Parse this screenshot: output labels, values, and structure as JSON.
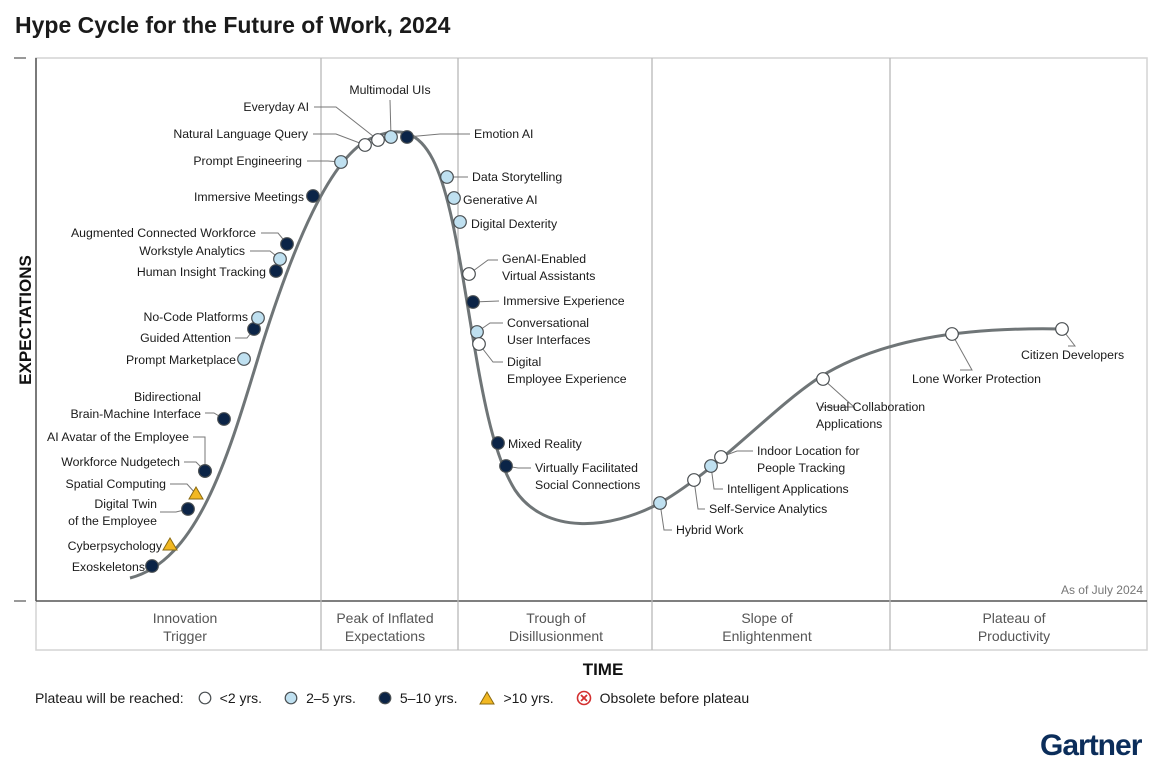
{
  "title": "Hype Cycle for the Future of Work, 2024",
  "as_of": "As of July 2024",
  "brand": "Gartner",
  "colors": {
    "lt2": "#ffffff",
    "y2to5": "#bfe0f0",
    "y5to10": "#0b2447",
    "gt10": "#f2b822",
    "obsolete": "#d32f2f",
    "curve": "#6f7577",
    "marker_stroke": "#4a4f52"
  },
  "legend": {
    "lead": "Plateau will be reached:",
    "items": [
      {
        "key": "lt2",
        "shape": "circle",
        "label": "<2 yrs."
      },
      {
        "key": "y2to5",
        "shape": "circle",
        "label": "2–5 yrs."
      },
      {
        "key": "y5to10",
        "shape": "circle",
        "label": "5–10 yrs."
      },
      {
        "key": "gt10",
        "shape": "triangle",
        "label": ">10 yrs."
      },
      {
        "key": "obsolete",
        "shape": "cross",
        "label": "Obsolete before plateau"
      }
    ]
  },
  "chart_data": {
    "type": "scatter",
    "title": "Hype Cycle for the Future of Work, 2024",
    "xlabel": "TIME",
    "ylabel": "EXPECTATIONS",
    "phases": [
      [
        "Innovation",
        "Trigger"
      ],
      [
        "Peak of Inflated",
        "Expectations"
      ],
      [
        "Trough of",
        "Disillusionment"
      ],
      [
        "Slope of",
        "Enlightenment"
      ],
      [
        "Plateau of",
        "Productivity"
      ]
    ],
    "technologies": [
      {
        "name": [
          "Exoskeletons"
        ],
        "phase": "Innovation Trigger",
        "category": "y5to10"
      },
      {
        "name": [
          "Cyberpsychology"
        ],
        "phase": "Innovation Trigger",
        "category": "gt10"
      },
      {
        "name": [
          "Digital Twin",
          "of the Employee"
        ],
        "phase": "Innovation Trigger",
        "category": "y5to10"
      },
      {
        "name": [
          "Spatial Computing"
        ],
        "phase": "Innovation Trigger",
        "category": "gt10"
      },
      {
        "name": [
          "Workforce Nudgetech"
        ],
        "phase": "Innovation Trigger",
        "category": "y5to10"
      },
      {
        "name": [
          "AI Avatar of the Employee"
        ],
        "phase": "Innovation Trigger",
        "category": "y5to10"
      },
      {
        "name": [
          "Bidirectional",
          "Brain-Machine Interface"
        ],
        "phase": "Innovation Trigger",
        "category": "y5to10"
      },
      {
        "name": [
          "Prompt Marketplace"
        ],
        "phase": "Innovation Trigger",
        "category": "y2to5"
      },
      {
        "name": [
          "Guided Attention"
        ],
        "phase": "Innovation Trigger",
        "category": "y5to10"
      },
      {
        "name": [
          "No-Code Platforms"
        ],
        "phase": "Innovation Trigger",
        "category": "y2to5"
      },
      {
        "name": [
          "Human Insight Tracking"
        ],
        "phase": "Innovation Trigger",
        "category": "y5to10"
      },
      {
        "name": [
          "Workstyle Analytics"
        ],
        "phase": "Innovation Trigger",
        "category": "y2to5"
      },
      {
        "name": [
          "Augmented Connected Workforce"
        ],
        "phase": "Innovation Trigger",
        "category": "y5to10"
      },
      {
        "name": [
          "Immersive Meetings"
        ],
        "phase": "Innovation Trigger",
        "category": "y5to10"
      },
      {
        "name": [
          "Prompt Engineering"
        ],
        "phase": "Peak of Inflated Expectations",
        "category": "y2to5"
      },
      {
        "name": [
          "Natural Language Query"
        ],
        "phase": "Peak of Inflated Expectations",
        "category": "lt2"
      },
      {
        "name": [
          "Everyday AI"
        ],
        "phase": "Peak of Inflated Expectations",
        "category": "lt2"
      },
      {
        "name": [
          "Multimodal UIs"
        ],
        "phase": "Peak of Inflated Expectations",
        "category": "y2to5"
      },
      {
        "name": [
          "Emotion AI"
        ],
        "phase": "Peak of Inflated Expectations",
        "category": "y5to10"
      },
      {
        "name": [
          "Data Storytelling"
        ],
        "phase": "Trough of Disillusionment",
        "category": "y2to5"
      },
      {
        "name": [
          "Generative AI"
        ],
        "phase": "Trough of Disillusionment",
        "category": "y2to5"
      },
      {
        "name": [
          "Digital Dexterity"
        ],
        "phase": "Trough of Disillusionment",
        "category": "y2to5"
      },
      {
        "name": [
          "GenAI-Enabled",
          "Virtual Assistants"
        ],
        "phase": "Trough of Disillusionment",
        "category": "lt2"
      },
      {
        "name": [
          "Immersive Experience"
        ],
        "phase": "Trough of Disillusionment",
        "category": "y5to10"
      },
      {
        "name": [
          "Conversational",
          "User Interfaces"
        ],
        "phase": "Trough of Disillusionment",
        "category": "y2to5"
      },
      {
        "name": [
          "Digital",
          "Employee Experience"
        ],
        "phase": "Trough of Disillusionment",
        "category": "lt2"
      },
      {
        "name": [
          "Mixed Reality"
        ],
        "phase": "Trough of Disillusionment",
        "category": "y5to10"
      },
      {
        "name": [
          "Virtually Facilitated",
          "Social Connections"
        ],
        "phase": "Trough of Disillusionment",
        "category": "y5to10"
      },
      {
        "name": [
          "Hybrid Work"
        ],
        "phase": "Slope of Enlightenment",
        "category": "y2to5"
      },
      {
        "name": [
          "Self-Service Analytics"
        ],
        "phase": "Slope of Enlightenment",
        "category": "lt2"
      },
      {
        "name": [
          "Intelligent Applications"
        ],
        "phase": "Slope of Enlightenment",
        "category": "y2to5"
      },
      {
        "name": [
          "Indoor Location for",
          "People Tracking"
        ],
        "phase": "Slope of Enlightenment",
        "category": "lt2"
      },
      {
        "name": [
          "Visual Collaboration",
          "Applications"
        ],
        "phase": "Slope of Enlightenment",
        "category": "lt2"
      },
      {
        "name": [
          "Lone Worker Protection"
        ],
        "phase": "Slope of Enlightenment",
        "category": "lt2"
      },
      {
        "name": [
          "Citizen Developers"
        ],
        "phase": "Slope of Enlightenment",
        "category": "lt2"
      }
    ]
  }
}
